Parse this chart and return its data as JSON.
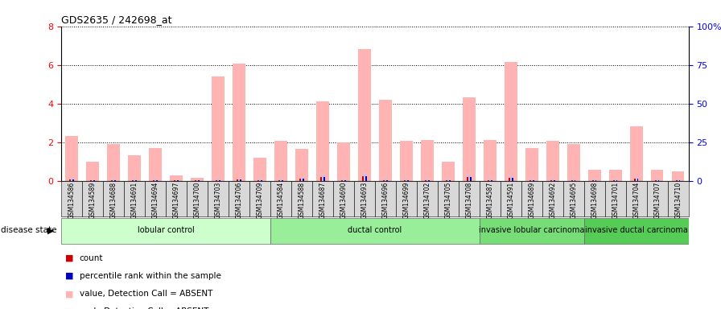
{
  "title": "GDS2635 / 242698_at",
  "samples": [
    "GSM134586",
    "GSM134589",
    "GSM134688",
    "GSM134691",
    "GSM134694",
    "GSM134697",
    "GSM134700",
    "GSM134703",
    "GSM134706",
    "GSM134709",
    "GSM134584",
    "GSM134588",
    "GSM134687",
    "GSM134690",
    "GSM134693",
    "GSM134696",
    "GSM134699",
    "GSM134702",
    "GSM134705",
    "GSM134708",
    "GSM134587",
    "GSM134591",
    "GSM134689",
    "GSM134692",
    "GSM134695",
    "GSM134698",
    "GSM134701",
    "GSM134704",
    "GSM134707",
    "GSM134710"
  ],
  "value_absent": [
    2.3,
    1.0,
    1.9,
    1.3,
    1.7,
    0.28,
    0.15,
    5.4,
    6.05,
    1.2,
    2.05,
    1.65,
    4.1,
    2.0,
    6.8,
    4.2,
    2.05,
    2.1,
    1.0,
    4.3,
    2.1,
    6.15,
    1.7,
    2.05,
    1.9,
    0.55,
    0.55,
    2.8,
    0.55,
    0.5
  ],
  "rank_absent": [
    0.09,
    0.04,
    0.05,
    0.05,
    0.05,
    0.03,
    0.02,
    0.06,
    0.07,
    0.05,
    0.05,
    0.17,
    0.27,
    0.05,
    0.32,
    0.05,
    0.05,
    0.05,
    0.05,
    0.27,
    0.05,
    0.22,
    0.05,
    0.05,
    0.05,
    0.05,
    0.05,
    0.17,
    0.05,
    0.05
  ],
  "count": [
    0.07,
    0.035,
    0.04,
    0.04,
    0.04,
    0.025,
    0.015,
    0.04,
    0.05,
    0.035,
    0.035,
    0.12,
    0.2,
    0.035,
    0.24,
    0.035,
    0.035,
    0.035,
    0.035,
    0.2,
    0.035,
    0.16,
    0.035,
    0.035,
    0.035,
    0.035,
    0.035,
    0.12,
    0.035,
    0.035
  ],
  "percentile": [
    0.07,
    0.035,
    0.04,
    0.04,
    0.04,
    0.025,
    0.015,
    0.04,
    0.05,
    0.035,
    0.035,
    0.12,
    0.2,
    0.035,
    0.24,
    0.035,
    0.035,
    0.035,
    0.035,
    0.2,
    0.035,
    0.16,
    0.035,
    0.035,
    0.035,
    0.035,
    0.035,
    0.12,
    0.035,
    0.035
  ],
  "groups": [
    {
      "label": "lobular control",
      "start": 0,
      "end": 10,
      "color": "#ccffcc"
    },
    {
      "label": "ductal control",
      "start": 10,
      "end": 20,
      "color": "#99ee99"
    },
    {
      "label": "invasive lobular carcinoma",
      "start": 20,
      "end": 25,
      "color": "#77dd77"
    },
    {
      "label": "invasive ductal carcinoma",
      "start": 25,
      "end": 30,
      "color": "#55cc55"
    }
  ],
  "ylim_left": [
    0,
    8
  ],
  "ylim_right": [
    0,
    100
  ],
  "yticks_left": [
    0,
    2,
    4,
    6,
    8
  ],
  "yticks_right": [
    0,
    25,
    50,
    75,
    100
  ],
  "yticklabels_right": [
    "0",
    "25",
    "50",
    "75",
    "100%"
  ],
  "color_value_absent": "#ffb3b3",
  "color_rank_absent": "#c0c0e8",
  "color_count": "#cc0000",
  "color_percentile": "#0000bb",
  "bg_col": "#ffffff",
  "cell_bg": "#d8d8d8"
}
